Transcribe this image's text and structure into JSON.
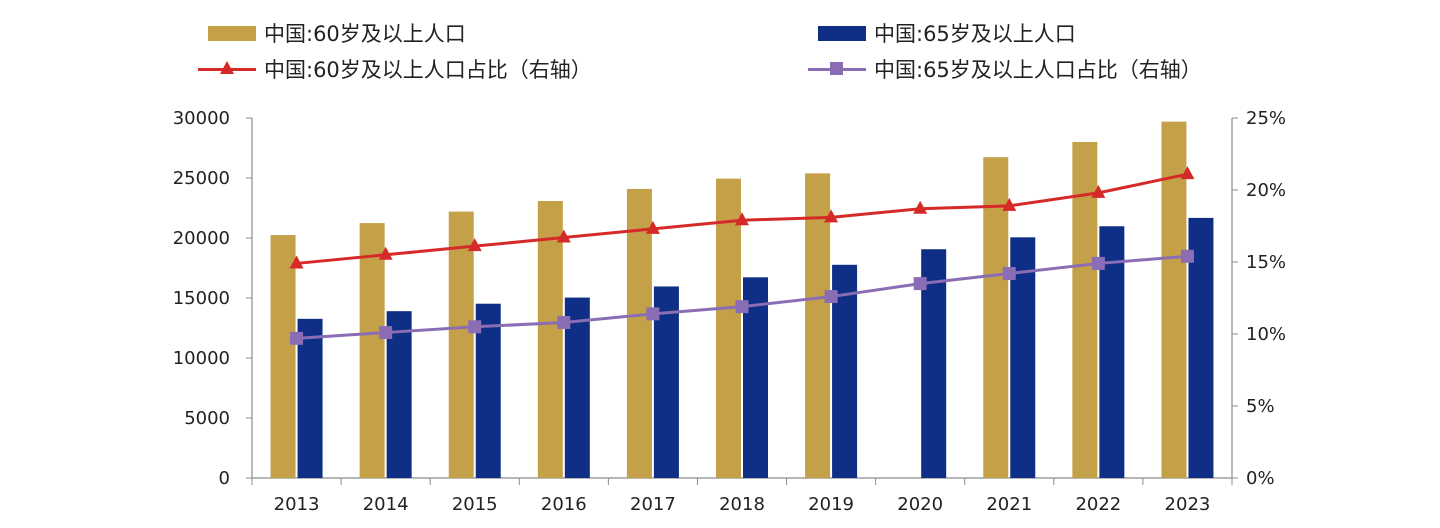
{
  "chart_data": {
    "type": "bar+line",
    "categories": [
      "2013",
      "2014",
      "2015",
      "2016",
      "2017",
      "2018",
      "2019",
      "2020",
      "2021",
      "2022",
      "2023"
    ],
    "series": [
      {
        "name": "中国:60岁及以上人口",
        "type": "bar",
        "axis": "left",
        "color": "#C4A048",
        "values": [
          20243,
          21242,
          22200,
          23086,
          24090,
          24949,
          25388,
          null,
          26736,
          28004,
          29697
        ]
      },
      {
        "name": "中国:65岁及以上人口",
        "type": "bar",
        "axis": "left",
        "color": "#0E2F85",
        "values": [
          13262,
          13902,
          14524,
          15037,
          15961,
          16724,
          17767,
          19064,
          20056,
          20978,
          21676
        ]
      },
      {
        "name": "中国:60岁及以上人口占比（右轴）",
        "type": "line",
        "axis": "right",
        "color": "#D62A28",
        "marker": "triangle",
        "values": [
          14.9,
          15.5,
          16.1,
          16.7,
          17.3,
          17.9,
          18.1,
          18.7,
          18.9,
          19.8,
          21.1
        ]
      },
      {
        "name": "中国:65岁及以上人口占比（右轴）",
        "type": "line",
        "axis": "right",
        "color": "#8A6DB5",
        "marker": "square",
        "values": [
          9.7,
          10.1,
          10.5,
          10.8,
          11.4,
          11.9,
          12.6,
          13.5,
          14.2,
          14.9,
          15.4
        ]
      }
    ],
    "y_left": {
      "min": 0,
      "max": 30000,
      "ticks": [
        "0",
        "5000",
        "10000",
        "15000",
        "20000",
        "25000",
        "30000"
      ]
    },
    "y_right": {
      "min": 0,
      "max": 25,
      "ticks": [
        "0%",
        "5%",
        "10%",
        "15%",
        "20%",
        "25%"
      ]
    },
    "grid": false
  }
}
